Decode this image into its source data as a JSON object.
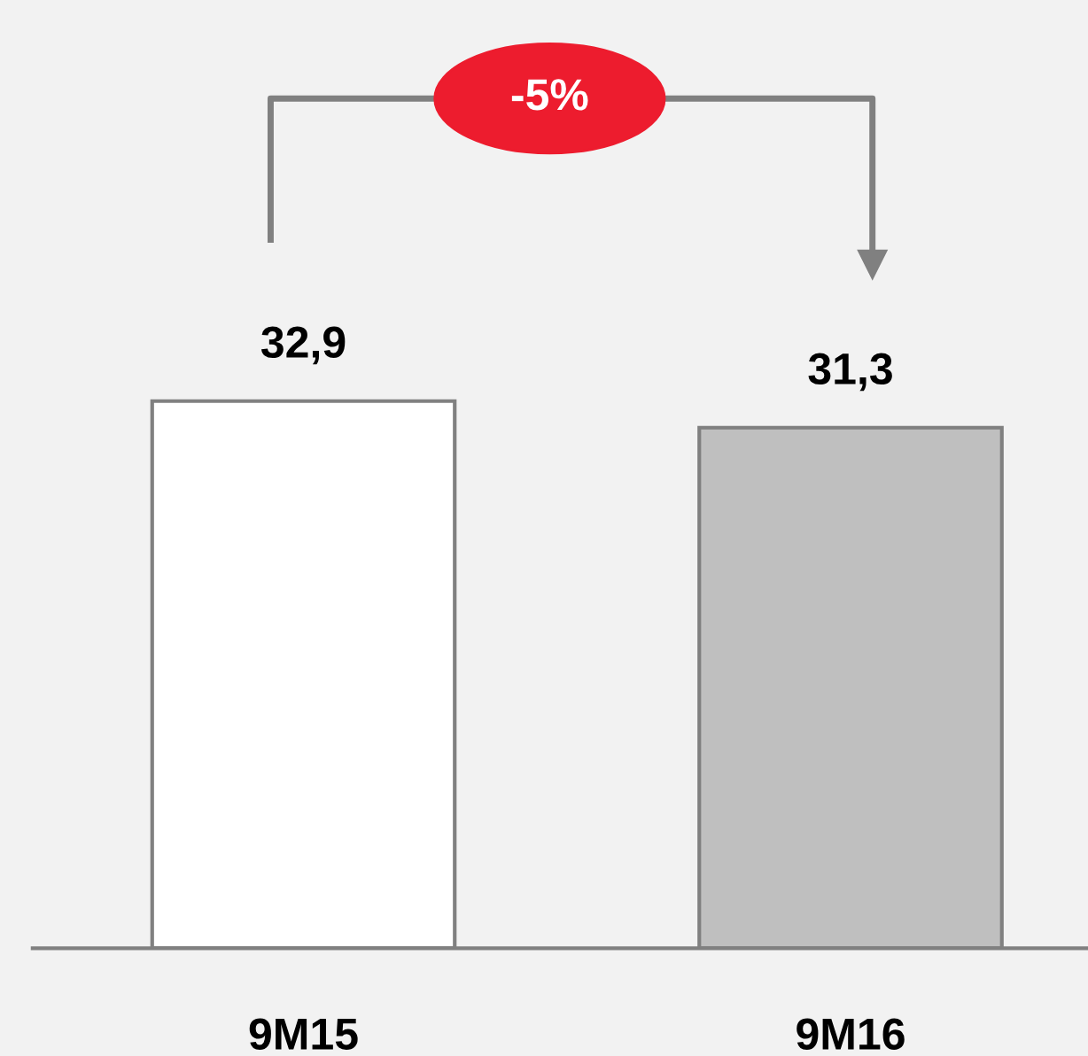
{
  "chart_data": {
    "type": "bar",
    "categories": [
      "9M15",
      "9M16"
    ],
    "values": [
      32.9,
      31.3
    ],
    "colors": [
      "#ffffff",
      "#bfbfbf"
    ],
    "value_labels": [
      "32,9",
      "31,3"
    ],
    "annotations": [
      "-5%"
    ]
  }
}
